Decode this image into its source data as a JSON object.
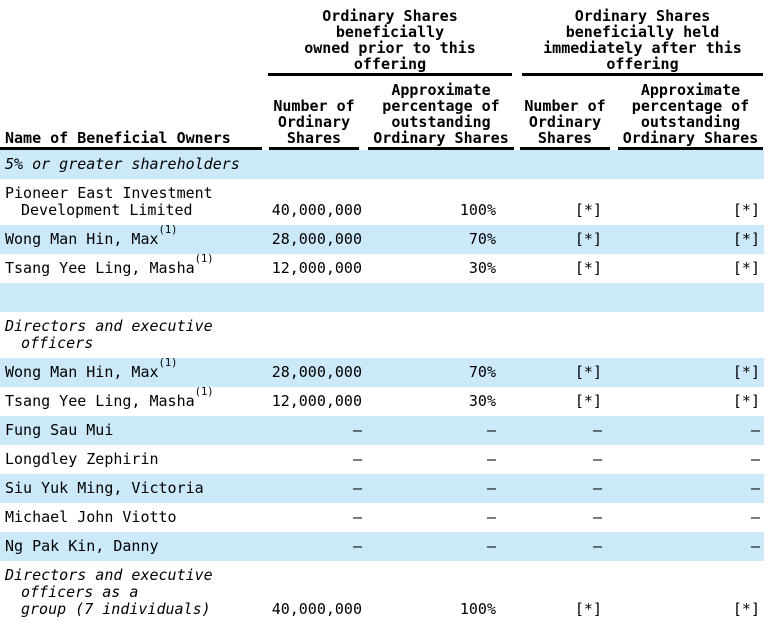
{
  "document": {
    "colors": {
      "row_shade": "#cce9f9",
      "text": "#000000",
      "rule": "#000000"
    },
    "table": {
      "name_column_header": "Name of Beneficial Owners",
      "group_headers": [
        {
          "id": "prior",
          "lines": [
            "Ordinary Shares",
            "beneficially",
            "owned prior to this",
            "offering"
          ]
        },
        {
          "id": "after",
          "lines": [
            "Ordinary Shares",
            "beneficially held",
            "immediately after this",
            "offering"
          ]
        }
      ],
      "column_headers": [
        {
          "id": "shares-prior",
          "lines": [
            "Number of",
            "Ordinary",
            "Shares"
          ]
        },
        {
          "id": "pct-prior",
          "lines": [
            "Approximate",
            "percentage of",
            "outstanding",
            "Ordinary Shares"
          ]
        },
        {
          "id": "shares-after",
          "lines": [
            "Number of",
            "Ordinary",
            "Shares"
          ]
        },
        {
          "id": "pct-after",
          "lines": [
            "Approximate",
            "percentage of",
            "outstanding",
            "Ordinary Shares"
          ]
        }
      ],
      "rows": [
        {
          "kind": "section",
          "shaded": true,
          "italic": true,
          "name_lines": [
            "5% or greater shareholders"
          ],
          "footnote": "",
          "values": [
            "",
            "",
            "",
            ""
          ]
        },
        {
          "kind": "data",
          "shaded": false,
          "italic": false,
          "name_lines": [
            "Pioneer East Investment",
            "Development Limited"
          ],
          "footnote": "",
          "values": [
            "40,000,000",
            "100%",
            "[*]",
            "[*]"
          ]
        },
        {
          "kind": "data",
          "shaded": true,
          "italic": false,
          "name_lines": [
            "Wong Man Hin, Max"
          ],
          "footnote": "(1)",
          "values": [
            "28,000,000",
            "70%",
            "[*]",
            "[*]"
          ]
        },
        {
          "kind": "data",
          "shaded": false,
          "italic": false,
          "name_lines": [
            "Tsang Yee Ling, Masha"
          ],
          "footnote": "(1)",
          "values": [
            "12,000,000",
            "30%",
            "[*]",
            "[*]"
          ]
        },
        {
          "kind": "spacer",
          "shaded": true,
          "italic": false,
          "name_lines": [],
          "footnote": "",
          "values": [
            "",
            "",
            "",
            ""
          ]
        },
        {
          "kind": "section",
          "shaded": false,
          "italic": true,
          "name_lines": [
            "Directors and executive",
            "officers"
          ],
          "footnote": "",
          "values": [
            "",
            "",
            "",
            ""
          ]
        },
        {
          "kind": "data",
          "shaded": true,
          "italic": false,
          "name_lines": [
            "Wong Man Hin, Max"
          ],
          "footnote": "(1)",
          "values": [
            "28,000,000",
            "70%",
            "[*]",
            "[*]"
          ]
        },
        {
          "kind": "data",
          "shaded": false,
          "italic": false,
          "name_lines": [
            "Tsang Yee Ling, Masha"
          ],
          "footnote": "(1)",
          "values": [
            "12,000,000",
            "30%",
            "[*]",
            "[*]"
          ]
        },
        {
          "kind": "data",
          "shaded": true,
          "italic": false,
          "name_lines": [
            "Fung Sau Mui"
          ],
          "footnote": "",
          "values": [
            "—",
            "—",
            "—",
            "—"
          ]
        },
        {
          "kind": "data",
          "shaded": false,
          "italic": false,
          "name_lines": [
            "Longdley Zephirin"
          ],
          "footnote": "",
          "values": [
            "—",
            "—",
            "—",
            "—"
          ]
        },
        {
          "kind": "data",
          "shaded": true,
          "italic": false,
          "name_lines": [
            "Siu Yuk Ming, Victoria"
          ],
          "footnote": "",
          "values": [
            "—",
            "—",
            "—",
            "—"
          ]
        },
        {
          "kind": "data",
          "shaded": false,
          "italic": false,
          "name_lines": [
            "Michael John Viotto"
          ],
          "footnote": "",
          "values": [
            "—",
            "—",
            "—",
            "—"
          ]
        },
        {
          "kind": "data",
          "shaded": true,
          "italic": false,
          "name_lines": [
            "Ng Pak Kin, Danny"
          ],
          "footnote": "",
          "values": [
            "—",
            "—",
            "—",
            "—"
          ]
        },
        {
          "kind": "data",
          "shaded": false,
          "italic": true,
          "name_lines": [
            "Directors and executive",
            "officers as a",
            "group (7 individuals)"
          ],
          "footnote": "",
          "values": [
            "40,000,000",
            "100%",
            "[*]",
            "[*]"
          ]
        }
      ]
    }
  }
}
